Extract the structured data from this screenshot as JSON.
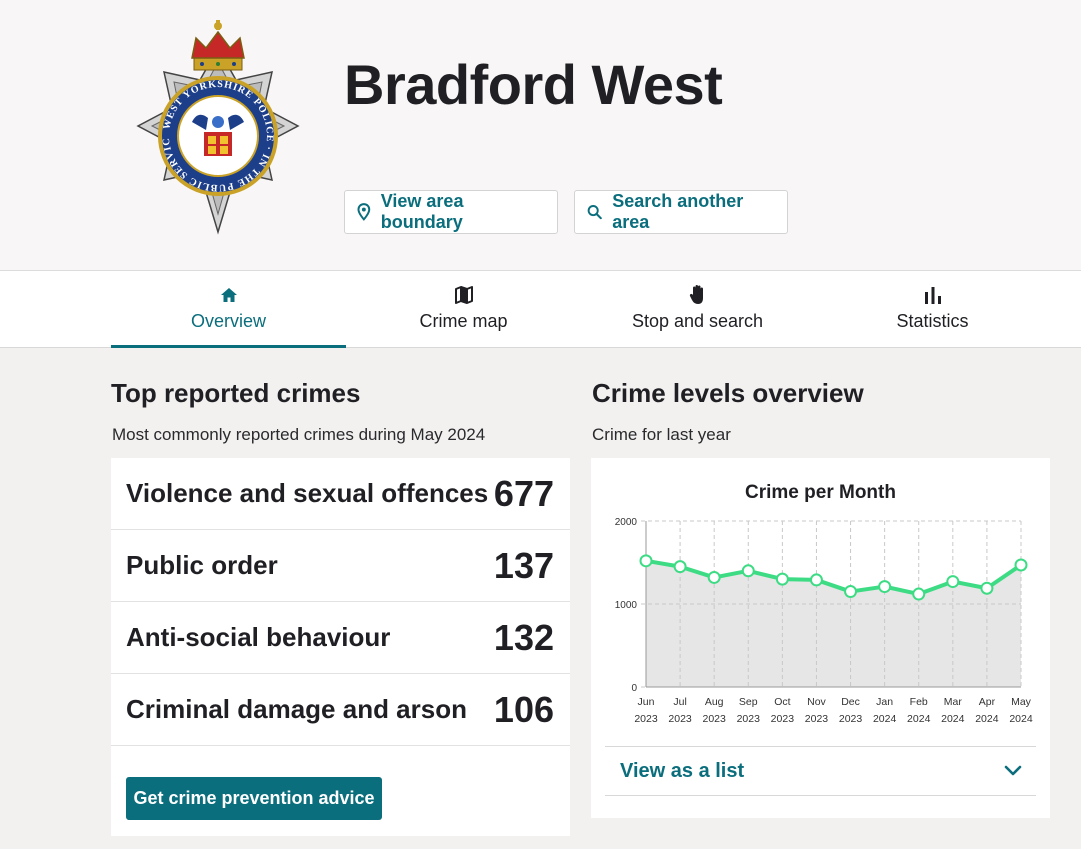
{
  "header": {
    "title": "Bradford West",
    "badge_text": "WEST YORKSHIRE POLICE · IN THE PUBLIC SERVICE",
    "view_boundary_label": "View area boundary",
    "search_area_label": "Search another area"
  },
  "tabs": [
    {
      "label": "Overview",
      "icon": "home-icon",
      "active": true
    },
    {
      "label": "Crime map",
      "icon": "map-icon",
      "active": false
    },
    {
      "label": "Stop and search",
      "icon": "hand-icon",
      "active": false
    },
    {
      "label": "Statistics",
      "icon": "bar-chart-icon",
      "active": false
    }
  ],
  "top_crimes": {
    "title": "Top reported crimes",
    "subtitle": "Most commonly reported crimes during May 2024",
    "items": [
      {
        "name": "Violence and sexual offences",
        "count": "677"
      },
      {
        "name": "Public order",
        "count": "137"
      },
      {
        "name": "Anti-social behaviour",
        "count": "132"
      },
      {
        "name": "Criminal damage and arson",
        "count": "106"
      }
    ],
    "advice_button": "Get crime prevention advice"
  },
  "crime_levels": {
    "title": "Crime levels overview",
    "subtitle": "Crime for last year",
    "view_list_label": "View as a list"
  },
  "colors": {
    "accent": "#0b6e7d",
    "line": "#3ddc84",
    "area": "#e6e6e6"
  },
  "chart_data": {
    "type": "line",
    "title": "Crime per Month",
    "xlabel": "",
    "ylabel": "",
    "categories": [
      [
        "Jun",
        "2023"
      ],
      [
        "Jul",
        "2023"
      ],
      [
        "Aug",
        "2023"
      ],
      [
        "Sep",
        "2023"
      ],
      [
        "Oct",
        "2023"
      ],
      [
        "Nov",
        "2023"
      ],
      [
        "Dec",
        "2023"
      ],
      [
        "Jan",
        "2024"
      ],
      [
        "Feb",
        "2024"
      ],
      [
        "Mar",
        "2024"
      ],
      [
        "Apr",
        "2024"
      ],
      [
        "May",
        "2024"
      ]
    ],
    "values": [
      1520,
      1450,
      1320,
      1400,
      1300,
      1290,
      1150,
      1210,
      1120,
      1270,
      1190,
      1470
    ],
    "yticks": [
      "0",
      "1000",
      "2000"
    ],
    "ylim": [
      0,
      2000
    ],
    "grid": true
  }
}
